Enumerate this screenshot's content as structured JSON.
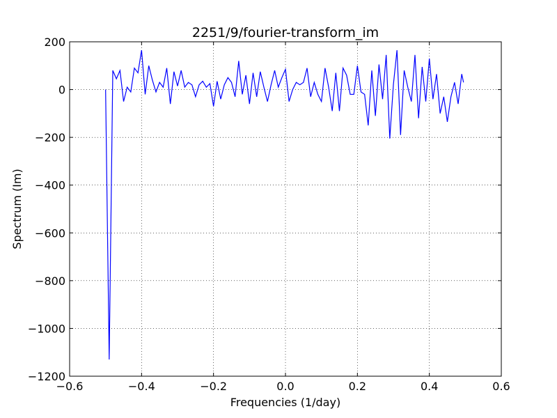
{
  "chart_data": {
    "type": "line",
    "title": "2251/9/fourier-transform_im",
    "xlabel": "Frequencies (1/day)",
    "ylabel": "Spectrum (Im)",
    "x": [
      -0.5,
      -0.49,
      -0.48,
      -0.47,
      -0.46,
      -0.45,
      -0.44,
      -0.43,
      -0.42,
      -0.41,
      -0.4,
      -0.39,
      -0.38,
      -0.37,
      -0.36,
      -0.35,
      -0.34,
      -0.33,
      -0.32,
      -0.31,
      -0.3,
      -0.29,
      -0.28,
      -0.27,
      -0.26,
      -0.25,
      -0.24,
      -0.23,
      -0.22,
      -0.21,
      -0.2,
      -0.19,
      -0.18,
      -0.17,
      -0.16,
      -0.15,
      -0.14,
      -0.13,
      -0.12,
      -0.11,
      -0.1,
      -0.09,
      -0.08,
      -0.07,
      -0.06,
      -0.05,
      -0.04,
      -0.03,
      -0.02,
      -0.01,
      0,
      0.01,
      0.02,
      0.03,
      0.04,
      0.05,
      0.06,
      0.07,
      0.08,
      0.09,
      0.1,
      0.11,
      0.12,
      0.13,
      0.14,
      0.15,
      0.16,
      0.17,
      0.18,
      0.19,
      0.2,
      0.21,
      0.22,
      0.23,
      0.24,
      0.25,
      0.26,
      0.27,
      0.28,
      0.29,
      0.3,
      0.31,
      0.32,
      0.33,
      0.34,
      0.35,
      0.36,
      0.37,
      0.38,
      0.39,
      0.4,
      0.41,
      0.42,
      0.43,
      0.44,
      0.45,
      0.46,
      0.47,
      0.48,
      0.49,
      0.495
    ],
    "series": [
      {
        "color": "#0000ff",
        "values": [
          0,
          -1130,
          80,
          45,
          80,
          -50,
          10,
          -10,
          90,
          70,
          165,
          -20,
          100,
          40,
          -10,
          30,
          10,
          90,
          -60,
          75,
          15,
          80,
          10,
          30,
          20,
          -30,
          20,
          35,
          10,
          25,
          -70,
          35,
          -40,
          20,
          50,
          30,
          -30,
          120,
          -20,
          60,
          -60,
          70,
          -30,
          75,
          10,
          -50,
          20,
          80,
          10,
          50,
          85,
          -50,
          0,
          30,
          20,
          30,
          90,
          -30,
          30,
          -20,
          -50,
          90,
          10,
          -90,
          70,
          -90,
          90,
          60,
          -20,
          -20,
          100,
          -10,
          -20,
          -150,
          80,
          -110,
          105,
          -40,
          145,
          -205,
          20,
          165,
          -190,
          80,
          10,
          -50,
          145,
          -120,
          95,
          -50,
          130,
          -40,
          65,
          -100,
          -30,
          -135,
          -30,
          30,
          -60,
          65,
          30
        ]
      }
    ],
    "xlim": [
      -0.6,
      0.6
    ],
    "xticks": [
      {
        "value": -0.6,
        "label": "−0.6"
      },
      {
        "value": -0.4,
        "label": "−0.4"
      },
      {
        "value": -0.2,
        "label": "−0.2"
      },
      {
        "value": 0,
        "label": "0.0"
      },
      0.2,
      0.4,
      0.6
    ],
    "ylim": [
      -1200,
      200
    ],
    "yticks": [
      {
        "value": -1200,
        "label": "−1200"
      },
      {
        "value": -1000,
        "label": "−1000"
      },
      {
        "value": -800,
        "label": "−800"
      },
      {
        "value": -600,
        "label": "−600"
      },
      {
        "value": -400,
        "label": "−400"
      },
      {
        "value": -200,
        "label": "−200"
      },
      0,
      200
    ],
    "grid": true
  }
}
